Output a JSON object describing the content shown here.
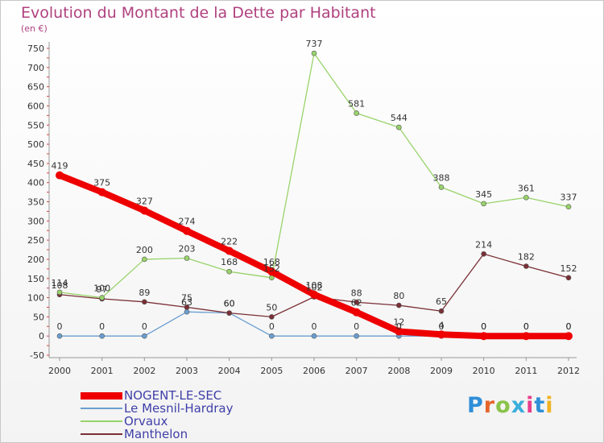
{
  "title": "Evolution du Montant de la Dette par Habitant",
  "subtitle": "(en €)",
  "logo": {
    "text": "Proxiti",
    "letter_colors": [
      "#2f8fd8",
      "#e5652a",
      "#8bc34a",
      "#3aaedc",
      "#e83e8c",
      "#2f8fd8",
      "#f0b323"
    ]
  },
  "chart_data": {
    "type": "line",
    "title": "Evolution du Montant de la Dette par Habitant",
    "subtitle": "(en €)",
    "xlabel": "",
    "ylabel": "",
    "x": [
      "2000",
      "2001",
      "2002",
      "2003",
      "2004",
      "2005",
      "2006",
      "2007",
      "2008",
      "2009",
      "2010",
      "2011",
      "2012"
    ],
    "ylim": [
      -50,
      750
    ],
    "yticks": [
      "-50",
      "0",
      "50",
      "100",
      "150",
      "200",
      "250",
      "300",
      "350",
      "400",
      "450",
      "500",
      "550",
      "600",
      "650",
      "700",
      "750"
    ],
    "grid": false,
    "legend": "bottom-left",
    "series": [
      {
        "name": "NOGENT-LE-SEC",
        "color": "#ee0000",
        "values": [
          419,
          375,
          327,
          274,
          222,
          168,
          108,
          62,
          12,
          4,
          0,
          0,
          0
        ],
        "labels": [
          "419",
          "375",
          "327",
          "274",
          "222",
          "168",
          "108",
          "62",
          "12",
          "4",
          "0",
          "0",
          "0"
        ]
      },
      {
        "name": "Le Mesnil-Hardray",
        "color": "#6a9ed0",
        "values": [
          0,
          0,
          0,
          63,
          60,
          0,
          0,
          0,
          0,
          0,
          0,
          0,
          0
        ],
        "labels": [
          "0",
          "0",
          "0",
          "63",
          "60",
          "0",
          "0",
          "0",
          "0",
          "0",
          "0",
          "0",
          "0"
        ]
      },
      {
        "name": "Orvaux",
        "color": "#99d36b",
        "values": [
          114,
          100,
          200,
          203,
          168,
          152,
          737,
          581,
          544,
          388,
          345,
          361,
          337
        ],
        "labels": [
          "114",
          "100",
          "200",
          "203",
          "168",
          "152",
          "737",
          "581",
          "544",
          "388",
          "345",
          "361",
          "337"
        ]
      },
      {
        "name": "Manthelon",
        "color": "#7a2f35",
        "values": [
          108,
          97,
          89,
          75,
          60,
          50,
          102,
          88,
          80,
          65,
          214,
          182,
          152
        ],
        "labels": [
          "108",
          "97",
          "89",
          "75",
          "60",
          "50",
          "102",
          "88",
          "80",
          "65",
          "214",
          "182",
          "152"
        ]
      }
    ]
  }
}
